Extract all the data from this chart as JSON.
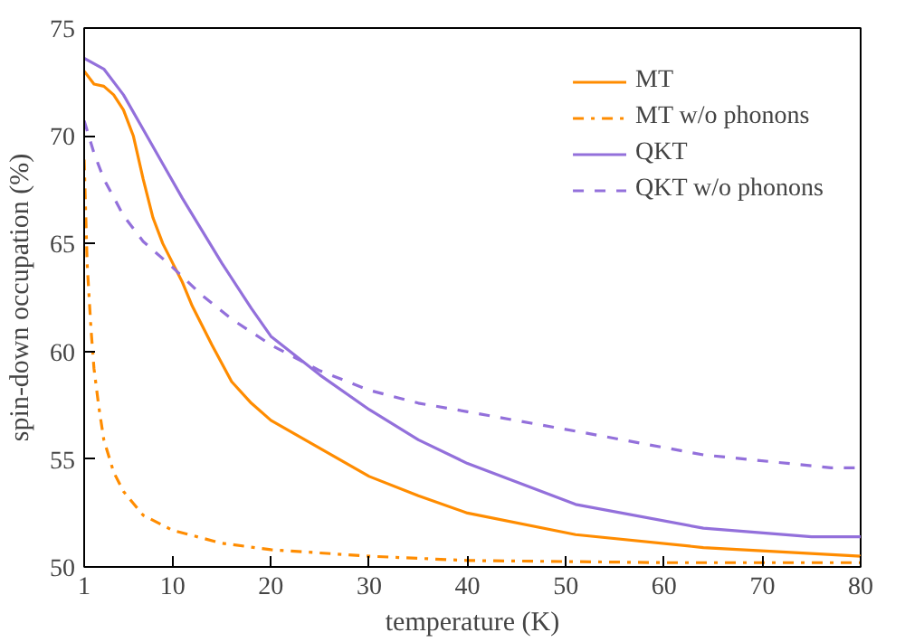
{
  "chart_data": {
    "type": "line",
    "xlabel": "temperature (K)",
    "ylabel": "spin-down occupation (%)",
    "xlim": [
      1,
      80
    ],
    "ylim": [
      50,
      75
    ],
    "xticks": [
      1,
      10,
      20,
      30,
      40,
      50,
      60,
      70,
      80
    ],
    "yticks": [
      50,
      55,
      60,
      65,
      70,
      75
    ],
    "grid": false,
    "legend": "top right",
    "series": [
      {
        "name": "MT",
        "color": "#ff8c00",
        "line_style": "solid",
        "x": [
          1,
          2,
          3,
          4,
          5,
          6,
          7,
          8,
          9,
          10,
          11,
          12,
          14,
          16,
          18,
          20,
          25,
          30,
          35,
          40,
          51,
          64,
          80
        ],
        "values": [
          73.0,
          72.4,
          72.3,
          71.9,
          71.2,
          70.0,
          68.0,
          66.2,
          65.0,
          64.1,
          63.2,
          62.1,
          60.3,
          58.6,
          57.6,
          56.8,
          55.5,
          54.2,
          53.3,
          52.5,
          51.5,
          50.9,
          50.5
        ]
      },
      {
        "name": "MT w/o phonons",
        "color": "#ff8c00",
        "line_style": "dashdot",
        "x": [
          1,
          1.3,
          1.7,
          2,
          2.5,
          3,
          4,
          5,
          7,
          10,
          15,
          20,
          30,
          40,
          60,
          80
        ],
        "values": [
          68.9,
          64.1,
          61.0,
          59.2,
          57.4,
          55.9,
          54.4,
          53.5,
          52.4,
          51.7,
          51.1,
          50.8,
          50.5,
          50.3,
          50.2,
          50.2
        ]
      },
      {
        "name": "QKT",
        "color": "#9370db",
        "line_style": "solid",
        "x": [
          1,
          3,
          5,
          7,
          9,
          11,
          13,
          15,
          18,
          20,
          25,
          30,
          35,
          40,
          51,
          64,
          75,
          80
        ],
        "values": [
          73.6,
          73.1,
          71.9,
          70.3,
          68.7,
          67.1,
          65.6,
          64.1,
          62.0,
          60.7,
          58.9,
          57.3,
          55.9,
          54.8,
          52.9,
          51.8,
          51.4,
          51.4
        ]
      },
      {
        "name": "QKT w/o phonons",
        "color": "#9370db",
        "line_style": "dashed",
        "x": [
          1,
          2,
          3,
          5,
          7,
          10,
          13,
          16,
          20,
          25,
          30,
          35,
          40,
          51,
          64,
          77,
          80
        ],
        "values": [
          70.7,
          69.2,
          68.0,
          66.3,
          65.1,
          63.9,
          62.6,
          61.5,
          60.3,
          59.1,
          58.2,
          57.6,
          57.2,
          56.3,
          55.2,
          54.6,
          54.6
        ]
      }
    ]
  }
}
